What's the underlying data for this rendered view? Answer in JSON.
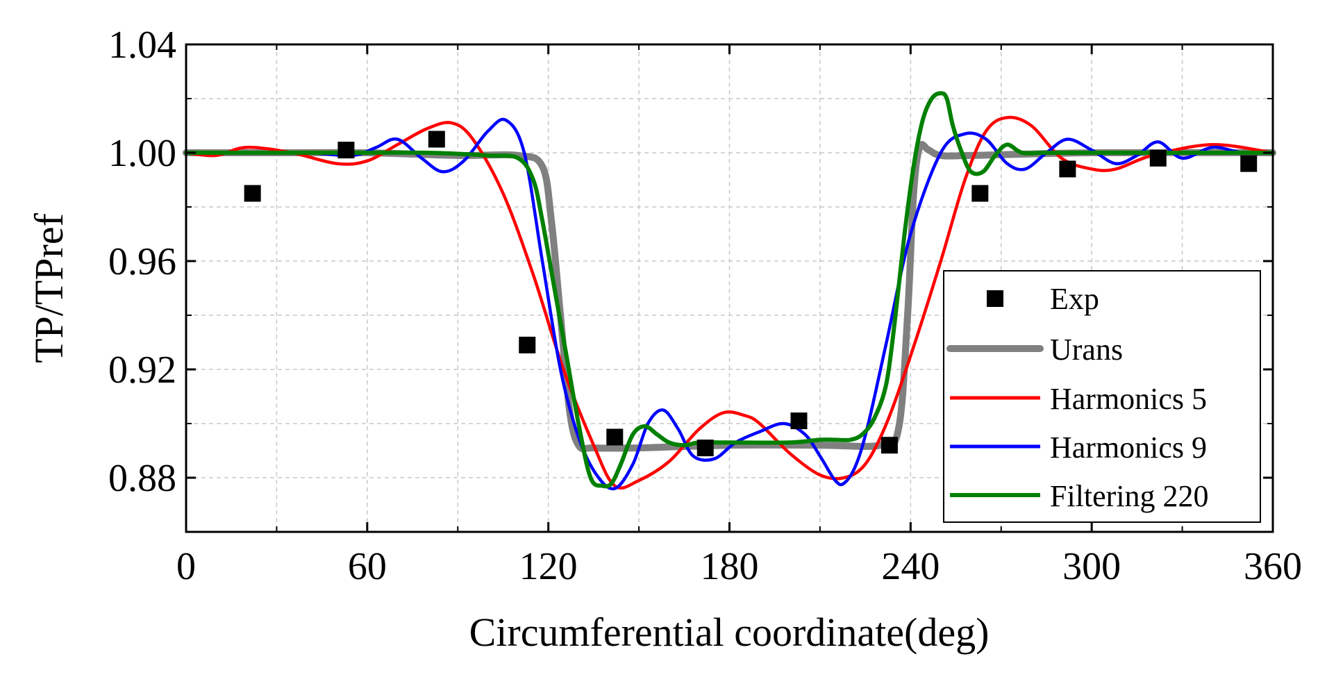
{
  "chart_data": {
    "type": "line",
    "title": "",
    "xlabel": "Circumferential coordinate(deg)",
    "ylabel": "TP/TPref",
    "xlim": [
      0,
      360
    ],
    "ylim": [
      0.86,
      1.04
    ],
    "xticks": [
      "0",
      "60",
      "120",
      "180",
      "240",
      "300",
      "360"
    ],
    "xtick_values": [
      0,
      60,
      120,
      180,
      240,
      300,
      360
    ],
    "yticks": [
      "0.88",
      "0.92",
      "0.96",
      "1.00",
      "1.04"
    ],
    "ytick_values": [
      0.88,
      0.92,
      0.96,
      1.0,
      1.04
    ],
    "grid": true,
    "legend_position": "bottom-right",
    "series": [
      {
        "name": "Exp",
        "style": "marker",
        "color": "#000000",
        "x": [
          22,
          53,
          83,
          113,
          142,
          172,
          203,
          233,
          263,
          292,
          322,
          352
        ],
        "y": [
          0.985,
          1.001,
          1.005,
          0.929,
          0.895,
          0.891,
          0.901,
          0.892,
          0.985,
          0.994,
          0.998,
          0.996
        ]
      },
      {
        "name": "Urans",
        "style": "line",
        "color": "#808080",
        "width": 10,
        "x": [
          0,
          30,
          60,
          90,
          110,
          118,
          121,
          124,
          127,
          130,
          135,
          150,
          180,
          210,
          230,
          236,
          239,
          241,
          243,
          246,
          250,
          260,
          300,
          360
        ],
        "y": [
          1.0,
          1.0,
          1.0,
          0.999,
          0.999,
          0.995,
          0.975,
          0.94,
          0.905,
          0.892,
          0.891,
          0.891,
          0.892,
          0.892,
          0.892,
          0.898,
          0.94,
          0.985,
          1.002,
          1.001,
          0.999,
          0.999,
          1.0,
          1.0
        ]
      },
      {
        "name": "Harmonics 5",
        "style": "line",
        "color": "#ff0000",
        "width": 4.5,
        "x": [
          0,
          10,
          20,
          35,
          50,
          60,
          70,
          80,
          88,
          95,
          105,
          115,
          125,
          135,
          142,
          150,
          160,
          170,
          178,
          185,
          190,
          200,
          210,
          218,
          225,
          232,
          240,
          250,
          258,
          265,
          272,
          280,
          290,
          300,
          308,
          320,
          340,
          360
        ],
        "y": [
          1.0,
          0.999,
          1.002,
          1.0,
          0.996,
          0.997,
          1.003,
          1.009,
          1.011,
          1.005,
          0.985,
          0.955,
          0.92,
          0.892,
          0.877,
          0.879,
          0.886,
          0.898,
          0.904,
          0.903,
          0.9,
          0.889,
          0.881,
          0.88,
          0.885,
          0.9,
          0.925,
          0.96,
          0.99,
          1.008,
          1.013,
          1.01,
          0.998,
          0.994,
          0.994,
          0.999,
          1.003,
          1.0
        ]
      },
      {
        "name": "Harmonics 9",
        "style": "line",
        "color": "#0000ff",
        "width": 4.5,
        "x": [
          0,
          20,
          40,
          55,
          63,
          70,
          78,
          85,
          92,
          100,
          106,
          112,
          118,
          124,
          130,
          136,
          142,
          148,
          153,
          158,
          163,
          168,
          175,
          182,
          190,
          198,
          205,
          210,
          215,
          218,
          222,
          226,
          232,
          240,
          250,
          258,
          265,
          272,
          278,
          285,
          292,
          300,
          308,
          315,
          322,
          330,
          340,
          350,
          360
        ],
        "y": [
          1.0,
          1.0,
          1.0,
          0.999,
          1.002,
          1.005,
          0.998,
          0.993,
          0.997,
          1.008,
          1.012,
          1.0,
          0.96,
          0.92,
          0.895,
          0.881,
          0.876,
          0.885,
          0.9,
          0.905,
          0.898,
          0.888,
          0.887,
          0.893,
          0.897,
          0.9,
          0.896,
          0.888,
          0.879,
          0.878,
          0.885,
          0.9,
          0.93,
          0.97,
          1.0,
          1.007,
          1.005,
          0.996,
          0.994,
          1.0,
          1.005,
          1.001,
          0.996,
          0.999,
          1.004,
          0.998,
          1.002,
          1.0,
          1.0
        ]
      },
      {
        "name": "Filtering 220",
        "style": "line",
        "color": "#008000",
        "width": 6,
        "x": [
          0,
          50,
          80,
          100,
          110,
          115,
          118,
          122,
          126,
          130,
          134,
          138,
          141,
          144,
          148,
          152,
          156,
          160,
          165,
          170,
          180,
          200,
          210,
          215,
          220,
          224,
          228,
          232,
          235,
          238,
          241,
          244,
          247,
          250,
          252,
          254,
          257,
          260,
          264,
          268,
          272,
          277,
          285,
          300,
          330,
          360
        ],
        "y": [
          1.0,
          1.0,
          1.0,
          0.999,
          0.998,
          0.99,
          0.975,
          0.95,
          0.925,
          0.9,
          0.88,
          0.877,
          0.878,
          0.885,
          0.896,
          0.899,
          0.896,
          0.893,
          0.892,
          0.893,
          0.893,
          0.893,
          0.894,
          0.894,
          0.894,
          0.896,
          0.902,
          0.915,
          0.94,
          0.97,
          0.995,
          1.012,
          1.02,
          1.022,
          1.02,
          1.01,
          1.0,
          0.993,
          0.993,
          0.999,
          1.003,
          1.0,
          1.0,
          1.0,
          1.0,
          1.0
        ]
      }
    ]
  }
}
